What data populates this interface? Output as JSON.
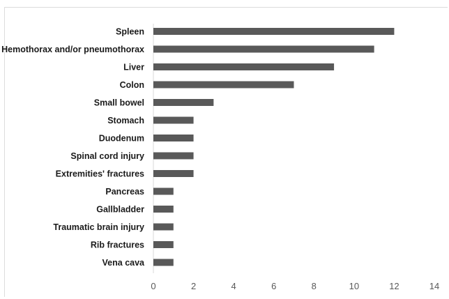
{
  "chart_data": {
    "type": "bar",
    "orientation": "horizontal",
    "categories": [
      "Spleen",
      "Hemothorax and/or pneumothorax",
      "Liver",
      "Colon",
      "Small bowel",
      "Stomach",
      "Duodenum",
      "Spinal cord injury",
      "Extremities' fractures",
      "Pancreas",
      "Gallbladder",
      "Traumatic brain injury",
      "Rib fractures",
      "Vena cava"
    ],
    "values": [
      12,
      11,
      9,
      7,
      3,
      2,
      2,
      2,
      2,
      1,
      1,
      1,
      1,
      1
    ],
    "xlim": [
      0,
      14
    ],
    "xticks": [
      "0",
      "2",
      "4",
      "6",
      "8",
      "10",
      "12",
      "14"
    ],
    "title": "",
    "xlabel": "",
    "ylabel": "",
    "grid": false,
    "legend": "none",
    "bar_color": "#595959"
  }
}
